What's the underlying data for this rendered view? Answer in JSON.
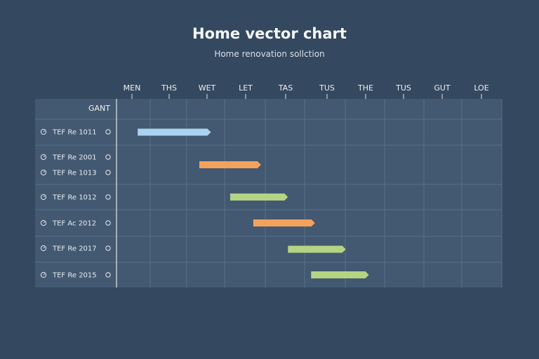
{
  "title": "Home vector chart",
  "subtitle": "Home renovation sollction",
  "chart_data": {
    "type": "gantt",
    "header_label": "GANT",
    "columns": [
      "MEN",
      "THS",
      "WET",
      "LET",
      "TAS",
      "TUS",
      "THE",
      "TUS",
      "GUT",
      "LOE"
    ],
    "rows": [
      {
        "labels": [
          "TEF Re 1011"
        ]
      },
      {
        "labels": [
          "TEF Re 2001",
          "TEF Re 1013"
        ]
      },
      {
        "labels": [
          "TEF Re 1012"
        ]
      },
      {
        "labels": [
          "TEF Ac 2012"
        ]
      },
      {
        "labels": [
          "TEF Re 2017"
        ]
      },
      {
        "labels": [
          "TEF Re 2015"
        ]
      }
    ],
    "tasks": [
      {
        "row": 0,
        "start": 0.55,
        "end": 2.45,
        "color": "#a9d3ee"
      },
      {
        "row": 1,
        "start": 2.15,
        "end": 3.75,
        "color": "#f3a25c"
      },
      {
        "row": 2,
        "start": 2.95,
        "end": 4.45,
        "color": "#b4d484"
      },
      {
        "row": 3,
        "start": 3.55,
        "end": 5.15,
        "color": "#f3a25c"
      },
      {
        "row": 4,
        "start": 4.45,
        "end": 5.95,
        "color": "#b4d484"
      },
      {
        "row": 5,
        "start": 5.05,
        "end": 6.55,
        "color": "#b4d484"
      }
    ],
    "grid": true,
    "colors": {
      "background": "#34485f",
      "panel": "#435971",
      "grid": "#596e86",
      "axis": "#dfe6ee"
    }
  }
}
